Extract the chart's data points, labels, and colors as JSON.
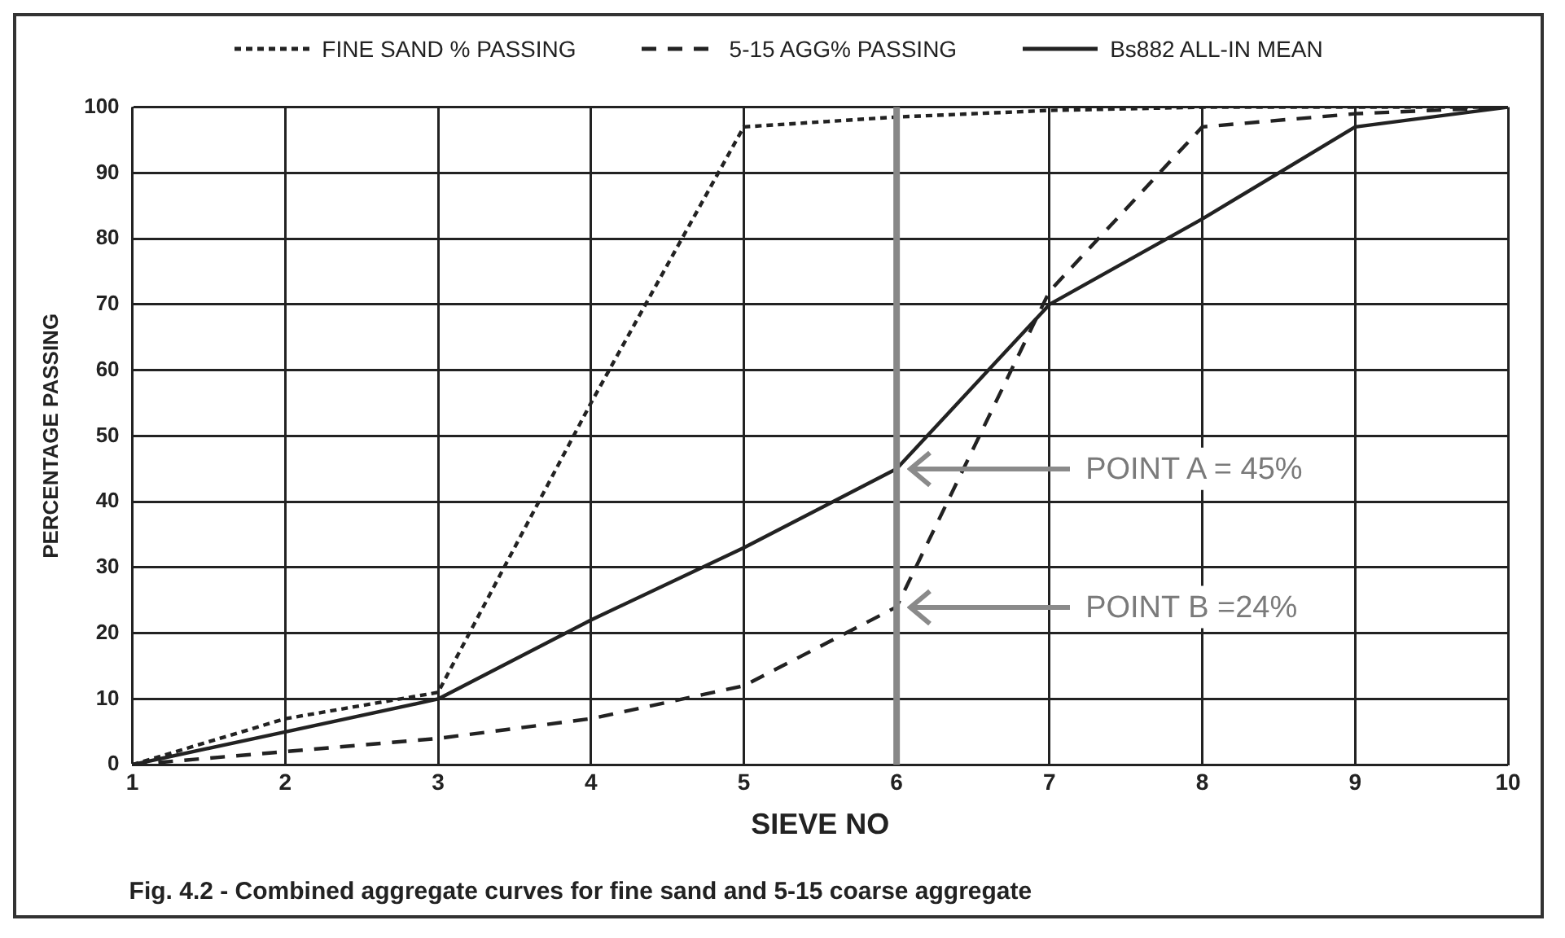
{
  "chart_data": {
    "type": "line",
    "xlabel": "SIEVE NO",
    "ylabel": "PERCENTAGE PASSING",
    "x": [
      1,
      2,
      3,
      4,
      5,
      6,
      7,
      8,
      9,
      10
    ],
    "xlim": [
      1,
      10
    ],
    "xticks": [
      1,
      2,
      3,
      4,
      5,
      6,
      7,
      8,
      9,
      10
    ],
    "ylim": [
      0,
      100
    ],
    "yticks": [
      0,
      10,
      20,
      30,
      40,
      50,
      60,
      70,
      80,
      90,
      100
    ],
    "grid": true,
    "legend": "top",
    "marker": "none",
    "series": [
      {
        "name": "FINE SAND % PASSING",
        "color": "#222222",
        "line_style": "dotted",
        "values": [
          0,
          7,
          11,
          55,
          97,
          98.5,
          99.5,
          100,
          100,
          100
        ]
      },
      {
        "name": "5-15 AGG% PASSING",
        "color": "#222222",
        "line_style": "dashed",
        "values": [
          0,
          2,
          4,
          7,
          12,
          24,
          72,
          97,
          99,
          100
        ]
      },
      {
        "name": "Bs882 ALL-IN MEAN",
        "color": "#222222",
        "line_style": "solid",
        "values": [
          0,
          5,
          10,
          22,
          33,
          45,
          70,
          83,
          97,
          100
        ]
      }
    ],
    "ref_lines": [
      {
        "axis": "x",
        "value": 6,
        "color": "#888888"
      }
    ],
    "annotations": [
      {
        "text": "POINT A = 45%",
        "x": 6,
        "y": 45
      },
      {
        "text": "POINT B =24%",
        "x": 6,
        "y": 24
      },
      "Fig. 4.2 - Combined aggregate curves for fine sand and 5-15 coarse aggregate"
    ]
  }
}
